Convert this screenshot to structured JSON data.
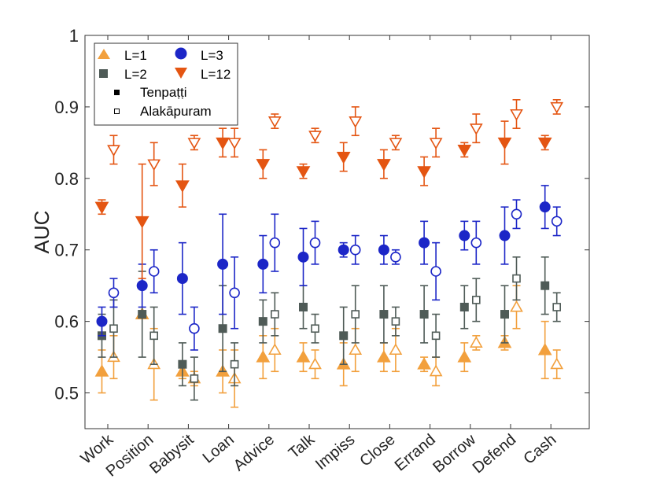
{
  "chart_data": {
    "type": "scatter",
    "ylabel": "AUC",
    "ylim": [
      0.45,
      1.0
    ],
    "yticks": [
      0.5,
      0.6,
      0.7,
      0.8,
      0.9,
      1
    ],
    "ytick_labels": [
      "0.5",
      "0.6",
      "0.7",
      "0.8",
      "0.9",
      "1"
    ],
    "categories": [
      "Work",
      "Position",
      "Babysit",
      "Loan",
      "Advice",
      "Talk",
      "Impiss",
      "Close",
      "Errand",
      "Borrow",
      "Defend",
      "Cash"
    ],
    "legend_placement": "top-left",
    "grid": false,
    "colors": {
      "L1": "#f2a03d",
      "L2": "#4f5b57",
      "L3": "#1c26c7",
      "L12": "#e45512"
    },
    "legend": {
      "L1": "L=1",
      "L2": "L=2",
      "L3": "L=3",
      "L12": "L=12",
      "site_a": "Tenpaṭṭi",
      "site_b": "Alakāpuram"
    },
    "series": [
      {
        "L": "L1",
        "site": "Tenpatti",
        "values": [
          0.53,
          0.61,
          0.53,
          0.53,
          0.55,
          0.55,
          0.54,
          0.55,
          0.54,
          0.55,
          0.57,
          0.56
        ],
        "lower": [
          0.5,
          0.61,
          0.52,
          0.5,
          0.52,
          0.53,
          0.51,
          0.53,
          0.53,
          0.53,
          0.56,
          0.52
        ],
        "upper": [
          0.56,
          0.61,
          0.54,
          0.56,
          0.58,
          0.57,
          0.57,
          0.57,
          0.55,
          0.57,
          0.58,
          0.6
        ]
      },
      {
        "L": "L1",
        "site": "Alakapuram",
        "values": [
          0.55,
          0.54,
          0.52,
          0.52,
          0.56,
          0.54,
          0.56,
          0.56,
          0.53,
          0.57,
          0.62,
          0.54
        ],
        "lower": [
          0.52,
          0.49,
          0.51,
          0.48,
          0.53,
          0.52,
          0.53,
          0.53,
          0.51,
          0.56,
          0.59,
          0.52
        ],
        "upper": [
          0.58,
          0.59,
          0.53,
          0.56,
          0.59,
          0.56,
          0.59,
          0.59,
          0.55,
          0.58,
          0.65,
          0.56
        ]
      },
      {
        "L": "L2",
        "site": "Tenpatti",
        "values": [
          0.58,
          0.61,
          0.54,
          0.59,
          0.6,
          0.62,
          0.58,
          0.61,
          0.61,
          0.62,
          0.61,
          0.65
        ],
        "lower": [
          0.55,
          0.55,
          0.51,
          0.53,
          0.57,
          0.59,
          0.54,
          0.57,
          0.57,
          0.59,
          0.57,
          0.61
        ],
        "upper": [
          0.61,
          0.67,
          0.57,
          0.65,
          0.63,
          0.65,
          0.62,
          0.65,
          0.65,
          0.65,
          0.65,
          0.69
        ]
      },
      {
        "L": "L2",
        "site": "Alakapuram",
        "values": [
          0.59,
          0.58,
          0.52,
          0.54,
          0.61,
          0.59,
          0.61,
          0.6,
          0.58,
          0.63,
          0.66,
          0.62
        ],
        "lower": [
          0.55,
          0.54,
          0.49,
          0.51,
          0.58,
          0.57,
          0.57,
          0.58,
          0.55,
          0.6,
          0.63,
          0.6
        ],
        "upper": [
          0.63,
          0.62,
          0.55,
          0.57,
          0.64,
          0.61,
          0.65,
          0.62,
          0.61,
          0.66,
          0.69,
          0.64
        ]
      },
      {
        "L": "L3",
        "site": "Tenpatti",
        "values": [
          0.6,
          0.65,
          0.66,
          0.68,
          0.68,
          0.69,
          0.7,
          0.7,
          0.71,
          0.72,
          0.72,
          0.76
        ],
        "lower": [
          0.58,
          0.62,
          0.61,
          0.61,
          0.64,
          0.65,
          0.69,
          0.68,
          0.68,
          0.7,
          0.68,
          0.73
        ],
        "upper": [
          0.62,
          0.68,
          0.71,
          0.75,
          0.72,
          0.73,
          0.71,
          0.72,
          0.74,
          0.74,
          0.76,
          0.79
        ]
      },
      {
        "L": "L3",
        "site": "Alakapuram",
        "values": [
          0.64,
          0.67,
          0.59,
          0.64,
          0.71,
          0.71,
          0.7,
          0.69,
          0.67,
          0.71,
          0.75,
          0.74
        ],
        "lower": [
          0.62,
          0.64,
          0.56,
          0.59,
          0.67,
          0.68,
          0.68,
          0.68,
          0.63,
          0.68,
          0.73,
          0.72
        ],
        "upper": [
          0.66,
          0.7,
          0.62,
          0.69,
          0.75,
          0.74,
          0.72,
          0.7,
          0.71,
          0.74,
          0.77,
          0.76
        ]
      },
      {
        "L": "L12",
        "site": "Tenpatti",
        "values": [
          0.76,
          0.74,
          0.79,
          0.85,
          0.82,
          0.81,
          0.83,
          0.82,
          0.81,
          0.84,
          0.85,
          0.85
        ],
        "lower": [
          0.75,
          0.66,
          0.76,
          0.83,
          0.8,
          0.8,
          0.81,
          0.8,
          0.79,
          0.83,
          0.82,
          0.84
        ],
        "upper": [
          0.77,
          0.82,
          0.82,
          0.87,
          0.84,
          0.82,
          0.85,
          0.84,
          0.83,
          0.85,
          0.88,
          0.86
        ]
      },
      {
        "L": "L12",
        "site": "Alakapuram",
        "values": [
          0.84,
          0.82,
          0.85,
          0.85,
          0.88,
          0.86,
          0.88,
          0.85,
          0.85,
          0.87,
          0.89,
          0.9
        ],
        "lower": [
          0.82,
          0.79,
          0.84,
          0.83,
          0.87,
          0.85,
          0.86,
          0.84,
          0.83,
          0.85,
          0.87,
          0.89
        ],
        "upper": [
          0.86,
          0.85,
          0.86,
          0.87,
          0.89,
          0.87,
          0.9,
          0.86,
          0.87,
          0.89,
          0.91,
          0.91
        ]
      }
    ]
  }
}
